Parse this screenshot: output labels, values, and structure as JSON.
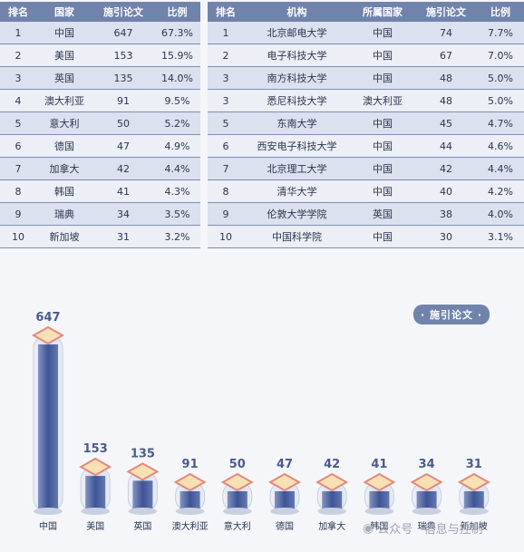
{
  "table_countries": {
    "headers": [
      "排名",
      "国家",
      "施引论文",
      "比例"
    ],
    "rows": [
      [
        "1",
        "中国",
        "647",
        "67.3%"
      ],
      [
        "2",
        "美国",
        "153",
        "15.9%"
      ],
      [
        "3",
        "英国",
        "135",
        "14.0%"
      ],
      [
        "4",
        "澳大利亚",
        "91",
        "9.5%"
      ],
      [
        "5",
        "意大利",
        "50",
        "5.2%"
      ],
      [
        "6",
        "德国",
        "47",
        "4.9%"
      ],
      [
        "7",
        "加拿大",
        "42",
        "4.4%"
      ],
      [
        "8",
        "韩国",
        "41",
        "4.3%"
      ],
      [
        "9",
        "瑞典",
        "34",
        "3.5%"
      ],
      [
        "10",
        "新加坡",
        "31",
        "3.2%"
      ]
    ]
  },
  "table_institutions": {
    "headers": [
      "排名",
      "机构",
      "所属国家",
      "施引论文",
      "比例"
    ],
    "rows": [
      [
        "1",
        "北京邮电大学",
        "中国",
        "74",
        "7.7%"
      ],
      [
        "2",
        "电子科技大学",
        "中国",
        "67",
        "7.0%"
      ],
      [
        "3",
        "南方科技大学",
        "中国",
        "48",
        "5.0%"
      ],
      [
        "3",
        "悉尼科技大学",
        "澳大利亚",
        "48",
        "5.0%"
      ],
      [
        "5",
        "东南大学",
        "中国",
        "45",
        "4.7%"
      ],
      [
        "6",
        "西安电子科技大学",
        "中国",
        "44",
        "4.6%"
      ],
      [
        "7",
        "北京理工大学",
        "中国",
        "42",
        "4.4%"
      ],
      [
        "8",
        "清华大学",
        "中国",
        "40",
        "4.2%"
      ],
      [
        "9",
        "伦敦大学学院",
        "英国",
        "38",
        "4.0%"
      ],
      [
        "10",
        "中国科学院",
        "中国",
        "30",
        "3.1%"
      ]
    ]
  },
  "chart_data": {
    "type": "bar",
    "categories": [
      "中国",
      "美国",
      "英国",
      "澳大利亚",
      "意大利",
      "德国",
      "加拿大",
      "韩国",
      "瑞典",
      "新加坡"
    ],
    "series": [
      {
        "name": "· 施引论文 ·",
        "values": [
          647,
          153,
          135,
          91,
          50,
          47,
          42,
          41,
          34,
          31
        ]
      }
    ],
    "legend": "top-right",
    "grid": false
  },
  "colors": {
    "header_bg": "#7083ab",
    "row_odd": "#dbe1ee",
    "row_even": "#eceff6",
    "bar_fill": "#4a5f9d",
    "value_label": "#4a5a8a",
    "cap_outline": "#e2897b",
    "cap_fill": "#f7e1b4"
  },
  "watermark": {
    "icon": "wechat-icon",
    "text": "公众号 · 信息与控制"
  }
}
